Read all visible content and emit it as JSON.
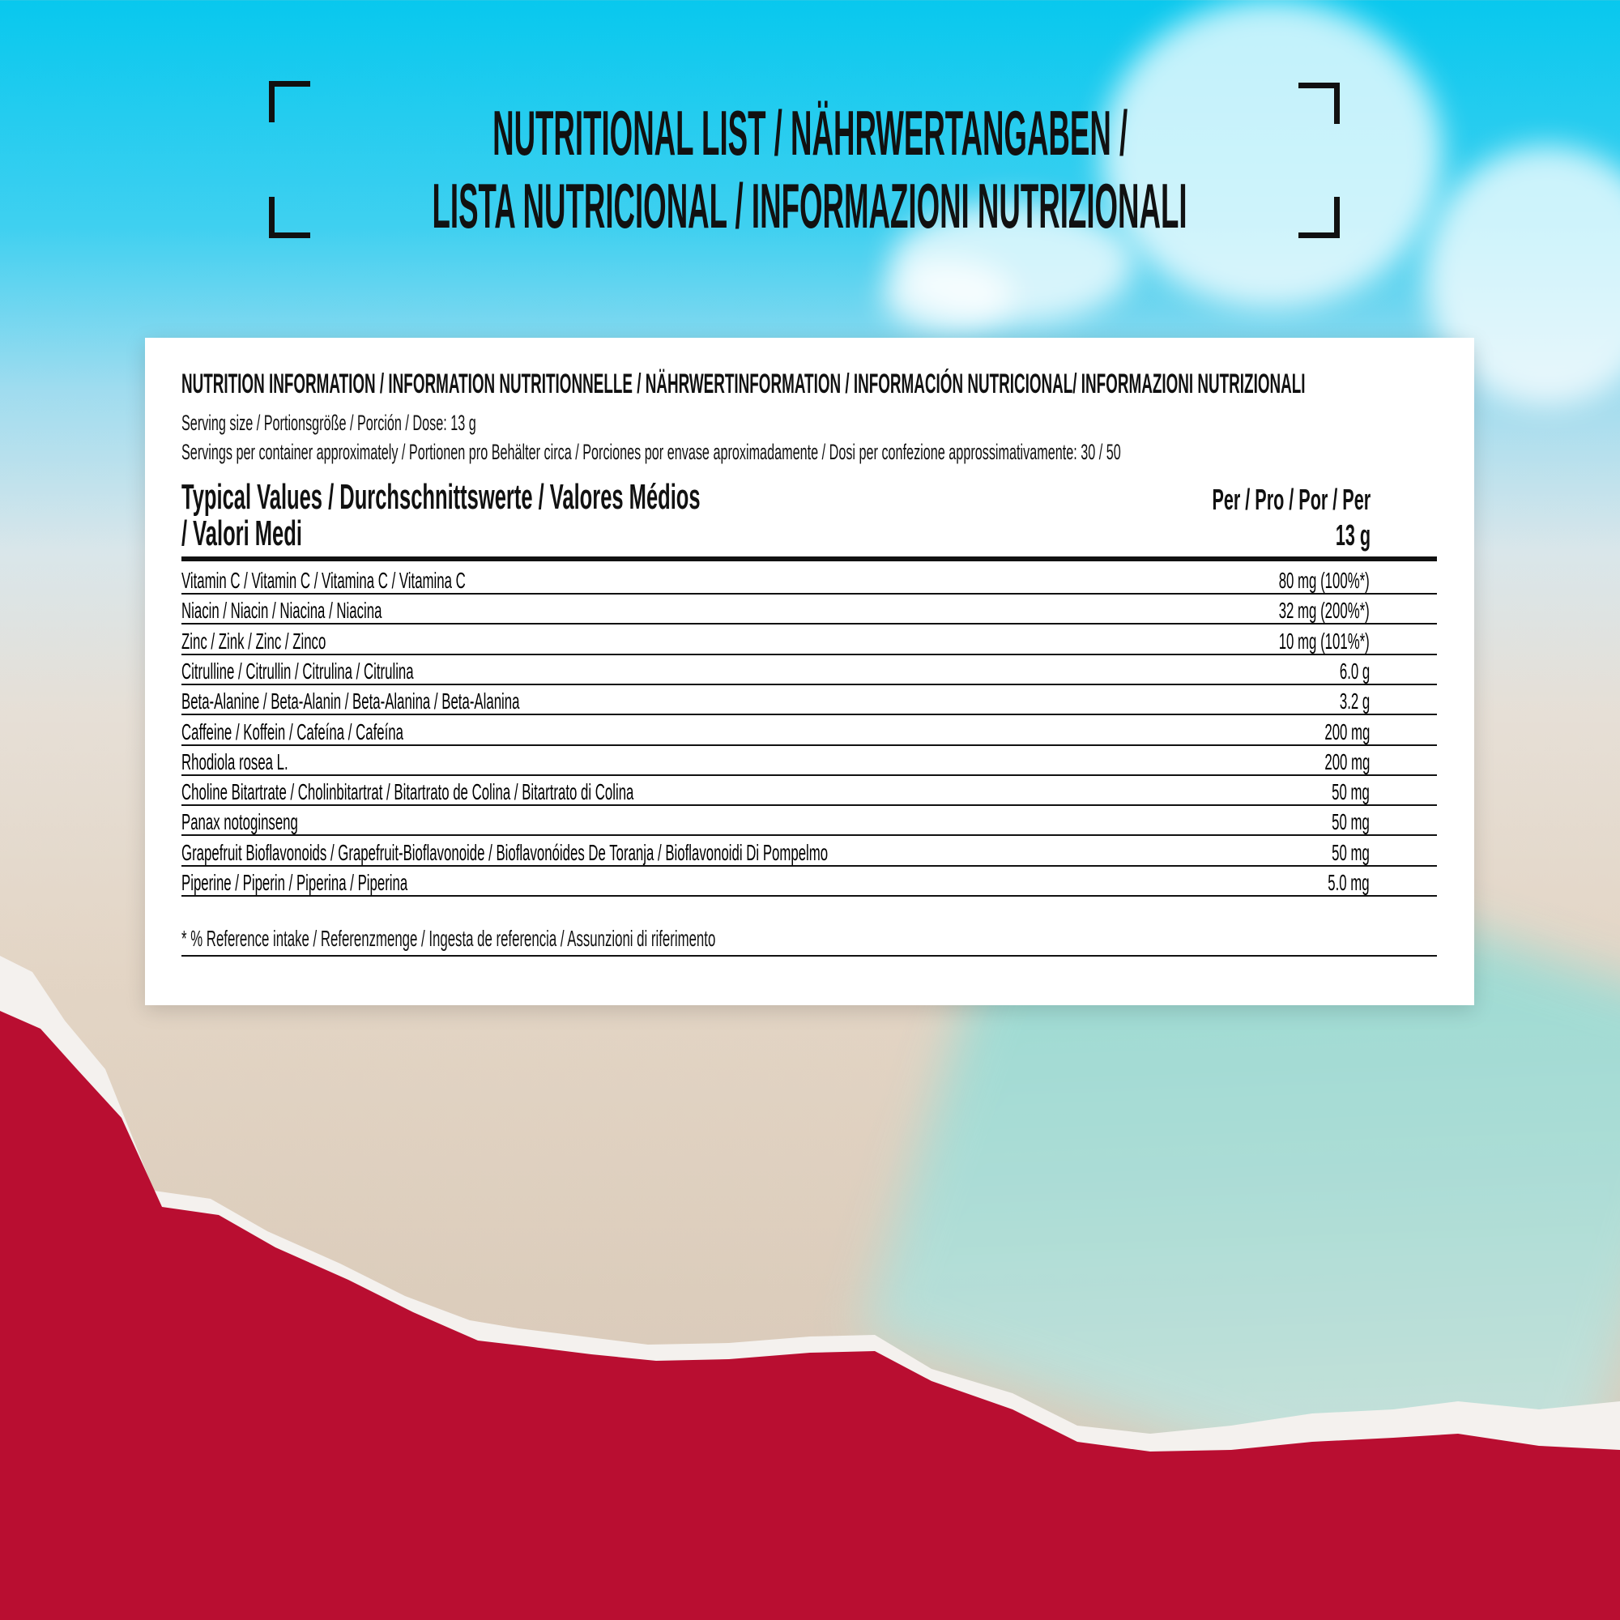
{
  "title": {
    "line1": "NUTRITIONAL LIST / NÄHRWERTANGABEN /",
    "line2": "LISTA NUTRICIONAL / INFORMAZIONI NUTRIZIONALI"
  },
  "card": {
    "heading": "NUTRITION INFORMATION / INFORMATION NUTRITIONNELLE / NÄHRWERTINFORMATION / INFORMACIÓN NUTRICIONAL/ INFORMAZIONI NUTRIZIONALI",
    "serving_size": "Serving size / Portionsgröße / Porción / Dose: 13 g",
    "servings_per_container": "Servings per container approximately / Portionen pro Behälter circa / Porciones por envase aproximadamente / Dosi per confezione approssimativamente: 30 / 50",
    "col_header_line1": "Typical Values / Durchschnittswerte / Valores Médios",
    "col_header_line2": "/ Valori Medi",
    "per_header_line1": "Per / Pro / Por / Per",
    "per_header_line2": "13 g",
    "rows": [
      {
        "name": "Vitamin C / Vitamin C / Vitamina C / Vitamina C",
        "value": "80 mg (100%*)"
      },
      {
        "name": "Niacin / Niacin / Niacina / Niacina",
        "value": "32 mg (200%*)"
      },
      {
        "name": "Zinc / Zink / Zinc / Zinco",
        "value": "10 mg (101%*)"
      },
      {
        "name": "Citrulline / Citrullin / Citrulina / Citrulina",
        "value": "6.0 g"
      },
      {
        "name": "Beta-Alanine / Beta-Alanin / Beta-Alanina / Beta-Alanina",
        "value": "3.2 g"
      },
      {
        "name": "Caffeine / Koffein / Cafeína / Cafeína",
        "value": "200 mg"
      },
      {
        "name": "Rhodiola rosea L.",
        "value": "200 mg"
      },
      {
        "name": "Choline Bitartrate / Cholinbitartrat / Bitartrato de Colina / Bitartrato di Colina",
        "value": "50 mg"
      },
      {
        "name": "Panax notoginseng",
        "value": "50 mg"
      },
      {
        "name": "Grapefruit Bioflavonoids / Grapefruit-Bioflavonoide / Bioflavonóides De Toranja / Bioflavonoidi Di Pompelmo",
        "value": "50 mg"
      },
      {
        "name": "Piperine / Piperin / Piperina / Piperina",
        "value": "5.0 mg"
      }
    ],
    "footnote": "* % Reference intake / Referenzmenge / Ingesta de referencia / Assunzioni di riferimento"
  },
  "colors": {
    "accent_red": "#b90e31",
    "text": "#111111",
    "sky": "#08c8ee"
  }
}
